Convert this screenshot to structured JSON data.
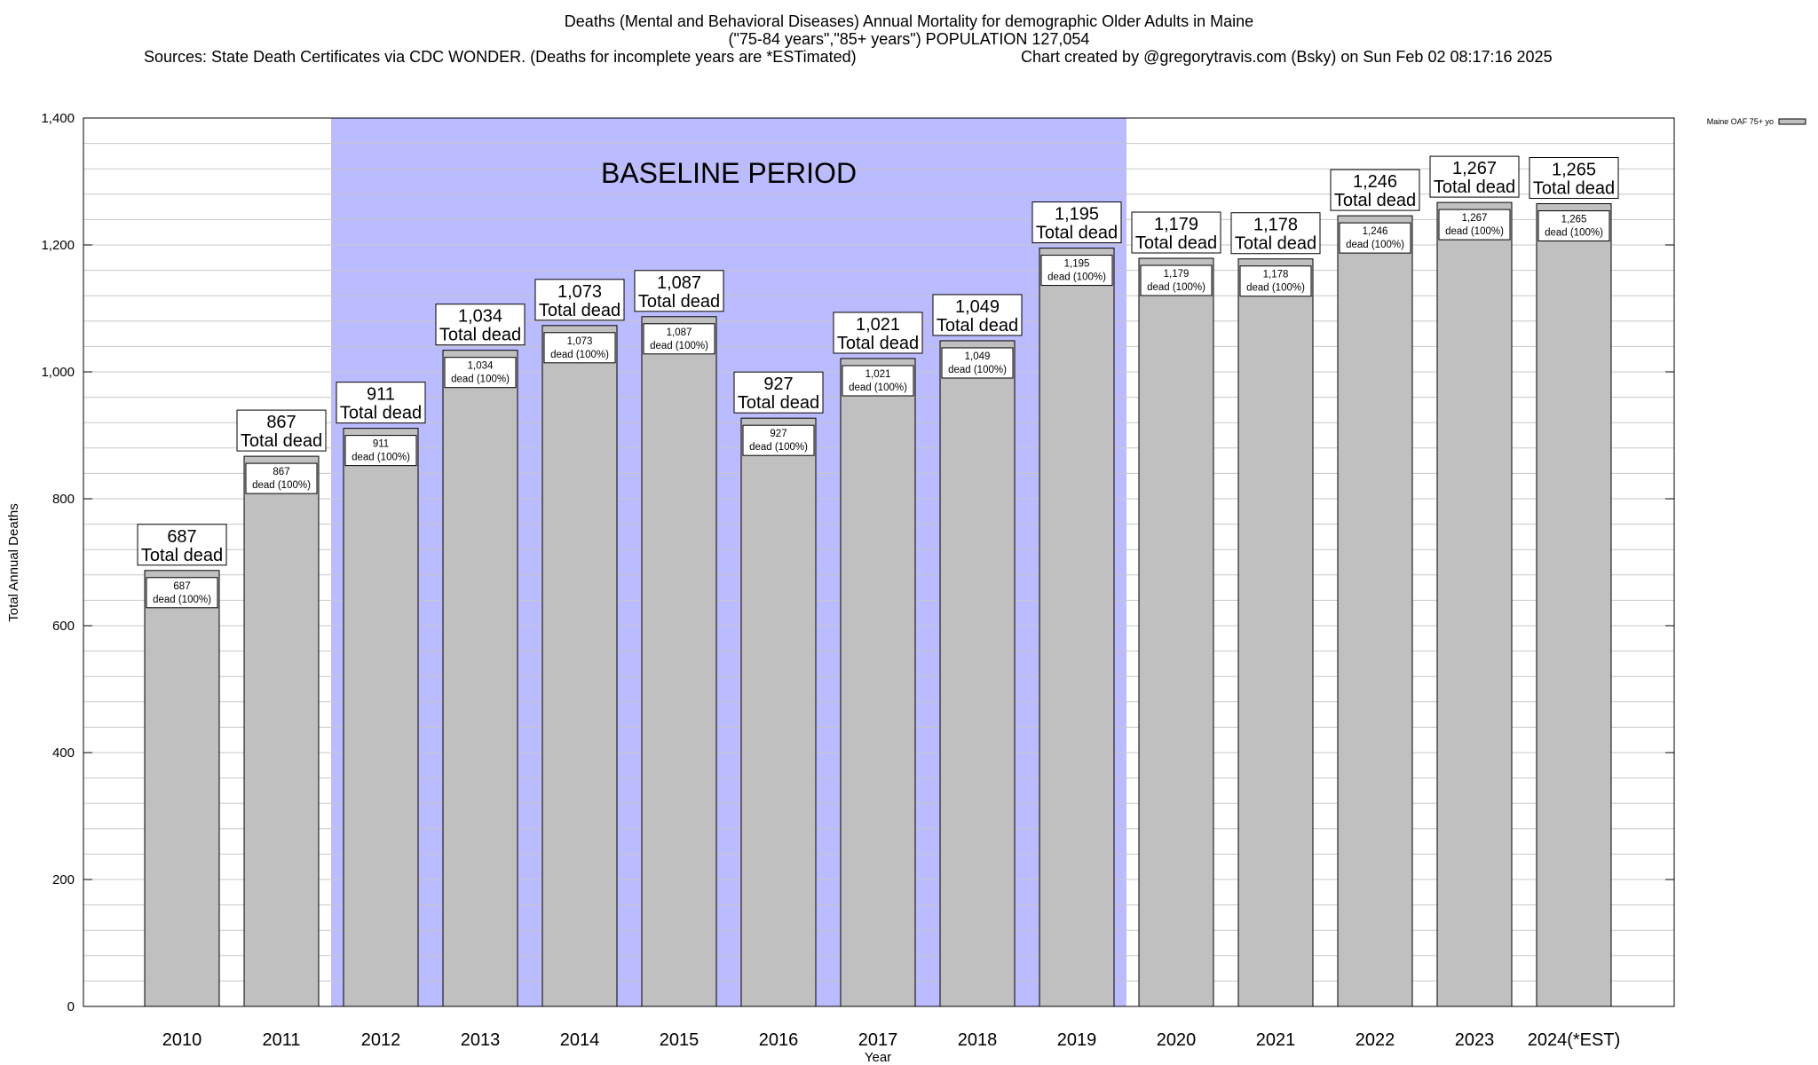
{
  "title": {
    "line1": "Deaths (Mental and Behavioral Diseases) Annual Mortality for demographic Older Adults in Maine",
    "line2": "(\"75-84 years\",\"85+ years\") POPULATION 127,054",
    "source": "Sources: State Death Certificates via CDC WONDER. (Deaths for incomplete years are *ESTimated)",
    "credit": "Chart created by @gregorytravis.com (Bsky) on Sun Feb 02 08:17:16 2025"
  },
  "colors": {
    "bar": "#c0c0c0",
    "baseline_band": "#bbbbff",
    "grid": "#c8c8c8"
  },
  "chart_data": {
    "type": "bar",
    "xlabel": "Year",
    "ylabel": "Total Annual Deaths",
    "ylim": [
      0,
      1400
    ],
    "y_ticks": [
      0,
      200,
      400,
      600,
      800,
      1000,
      1200,
      1400
    ],
    "y_tick_labels": [
      "0",
      "200",
      "400",
      "600",
      "800",
      "1,000",
      "1,200",
      "1,400"
    ],
    "grid": true,
    "legend": {
      "position": "top-right",
      "entries": [
        "Maine OAF 75+ yo"
      ]
    },
    "categories": [
      "2010",
      "2011",
      "2012",
      "2013",
      "2014",
      "2015",
      "2016",
      "2017",
      "2018",
      "2019",
      "2020",
      "2021",
      "2022",
      "2023",
      "2024(*EST)"
    ],
    "series": [
      {
        "name": "Maine OAF 75+ yo",
        "values": [
          687,
          867,
          911,
          1034,
          1073,
          1087,
          927,
          1021,
          1049,
          1195,
          1179,
          1178,
          1246,
          1267,
          1265
        ]
      }
    ],
    "value_labels": [
      "687",
      "867",
      "911",
      "1,034",
      "1,073",
      "1,087",
      "927",
      "1,021",
      "1,049",
      "1,195",
      "1,179",
      "1,178",
      "1,246",
      "1,267",
      "1,265"
    ],
    "total_label_suffix": "Total dead",
    "inner_label_suffix": "dead (100%)",
    "annotations": [
      {
        "text": "BASELINE PERIOD",
        "from_category": "2012",
        "to_category": "2019"
      }
    ]
  }
}
